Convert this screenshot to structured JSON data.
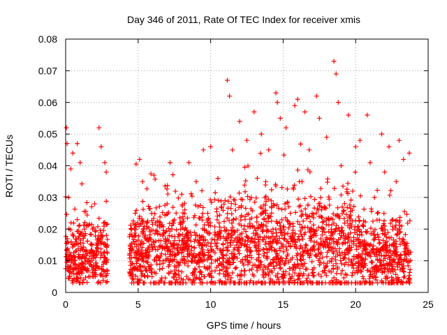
{
  "chart_data": {
    "type": "scatter",
    "title": "Day 346 of 2011, Rate Of TEC Index for receiver xmis",
    "xlabel": "GPS time / hours",
    "ylabel": "ROTI / TECUs",
    "xlim": [
      0,
      25
    ],
    "ylim": [
      0,
      0.08
    ],
    "x_ticks": [
      "0",
      "5",
      "10",
      "15",
      "20",
      "25"
    ],
    "y_ticks": [
      "0",
      "0.01",
      "0.02",
      "0.03",
      "0.04",
      "0.05",
      "0.06",
      "0.07",
      "0.08"
    ],
    "grid": true,
    "legend": "none",
    "marker": "+",
    "marker_color": "#ff0000",
    "data_gap_hours": [
      2.9,
      4.4
    ],
    "series": [
      {
        "x": [
          0.05,
          0.1,
          0.15,
          0.2,
          0.3,
          0.35,
          0.5,
          0.6,
          0.8,
          0.9,
          1.0,
          1.3,
          1.5,
          1.8,
          2.0,
          2.2,
          2.3,
          2.45,
          2.5,
          2.7,
          2.8,
          4.55,
          4.8,
          5.0,
          5.1,
          5.3,
          5.5,
          6.2,
          6.5,
          7.0,
          7.2,
          7.5,
          8.0,
          8.3,
          8.5,
          8.8,
          9.0,
          9.3,
          9.5,
          9.8,
          10.0,
          10.3,
          10.5,
          10.8,
          11.0,
          11.15,
          11.3,
          11.5,
          11.8,
          12.0,
          12.3,
          12.5,
          12.8,
          13.0,
          13.3,
          13.5,
          13.8,
          14.0,
          14.3,
          14.5,
          14.6,
          14.8,
          15.0,
          15.2,
          15.5,
          15.8,
          16.0,
          16.3,
          16.5,
          16.8,
          17.0,
          17.3,
          17.5,
          17.8,
          18.0,
          18.3,
          18.5,
          18.65,
          18.8,
          19.0,
          19.3,
          19.5,
          19.8,
          20.0,
          20.3,
          20.5,
          20.8,
          21.0,
          21.3,
          21.5,
          21.8,
          22.0,
          22.3,
          22.5,
          22.8,
          23.0,
          23.3,
          23.5,
          23.7
        ],
        "y": [
          0.052,
          0.047,
          0.01,
          0.03,
          0.005,
          0.039,
          0.044,
          0.015,
          0.047,
          0.012,
          0.041,
          0.02,
          0.01,
          0.015,
          0.028,
          0.008,
          0.052,
          0.046,
          0.018,
          0.041,
          0.038,
          0.02,
          0.025,
          0.015,
          0.042,
          0.035,
          0.018,
          0.022,
          0.01,
          0.028,
          0.041,
          0.006,
          0.031,
          0.015,
          0.041,
          0.004,
          0.035,
          0.01,
          0.045,
          0.025,
          0.046,
          0.019,
          0.036,
          0.012,
          0.005,
          0.067,
          0.062,
          0.045,
          0.015,
          0.054,
          0.02,
          0.048,
          0.03,
          0.057,
          0.012,
          0.05,
          0.035,
          0.045,
          0.02,
          0.063,
          0.06,
          0.055,
          0.015,
          0.052,
          0.025,
          0.059,
          0.061,
          0.035,
          0.057,
          0.045,
          0.025,
          0.062,
          0.055,
          0.02,
          0.049,
          0.018,
          0.073,
          0.069,
          0.06,
          0.04,
          0.012,
          0.056,
          0.032,
          0.046,
          0.048,
          0.015,
          0.056,
          0.041,
          0.03,
          0.025,
          0.05,
          0.038,
          0.046,
          0.015,
          0.035,
          0.048,
          0.042,
          0.01,
          0.044
        ]
      }
    ]
  }
}
